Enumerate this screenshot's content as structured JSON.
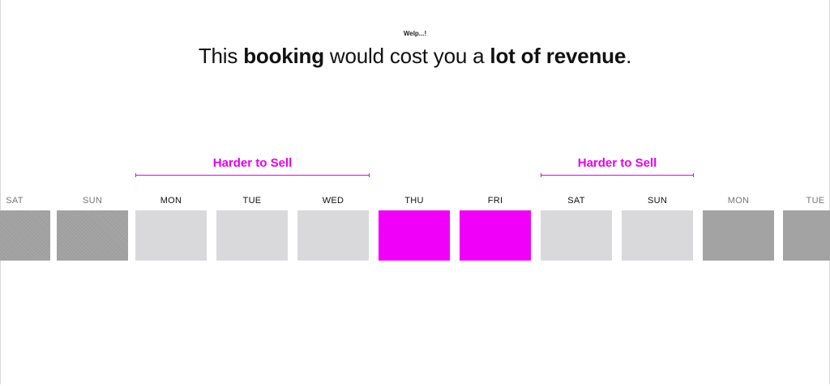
{
  "header": {
    "subtitle": "Welp...!",
    "headline_parts": [
      "This ",
      "booking",
      " would cost you a ",
      "lot of revenue",
      "."
    ]
  },
  "brackets": [
    {
      "label": "Harder to Sell",
      "color": "#e600ee"
    },
    {
      "label": "Harder to Sell",
      "color": "#e600ee"
    }
  ],
  "days": [
    {
      "label": "SAT",
      "status": "normal"
    },
    {
      "label": "SUN",
      "status": "normal"
    },
    {
      "label": "MON",
      "status": "harder-to-sell"
    },
    {
      "label": "TUE",
      "status": "harder-to-sell"
    },
    {
      "label": "WED",
      "status": "harder-to-sell"
    },
    {
      "label": "THU",
      "status": "booked"
    },
    {
      "label": "FRI",
      "status": "booked"
    },
    {
      "label": "SAT",
      "status": "harder-to-sell"
    },
    {
      "label": "SUN",
      "status": "harder-to-sell"
    },
    {
      "label": "MON",
      "status": "normal"
    },
    {
      "label": "TUE",
      "status": "normal"
    }
  ],
  "colors": {
    "accent": "#e600ee",
    "booked": "#f000f8",
    "harder_to_sell": "#d9d9dc",
    "normal": "#a3a3a3"
  }
}
